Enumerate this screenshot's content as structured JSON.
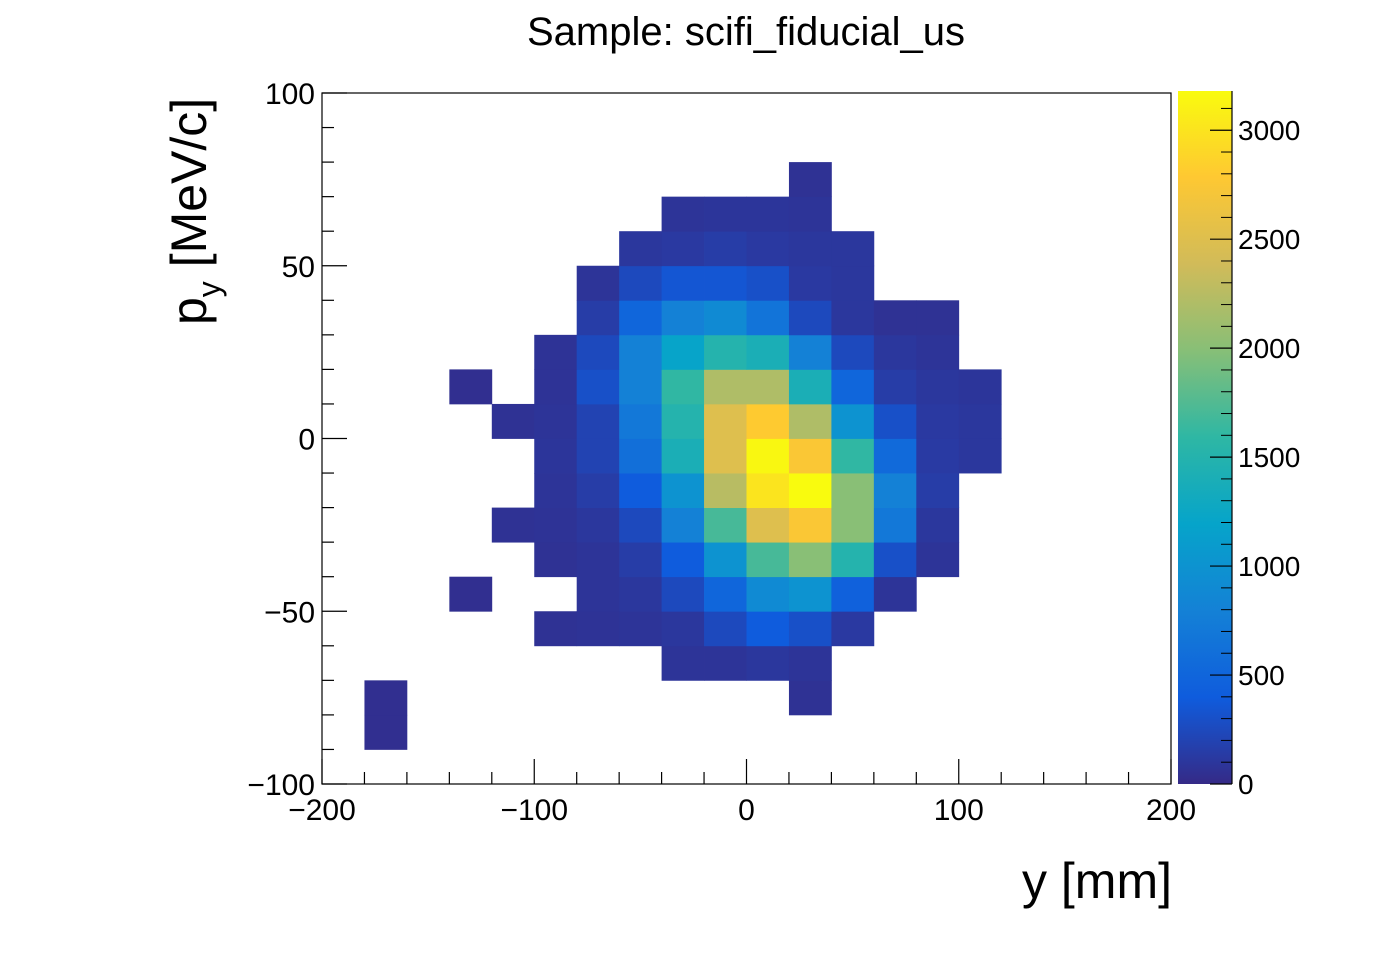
{
  "chart_data": {
    "type": "heatmap",
    "title": "Sample: scifi_fiducial_us",
    "xlabel": "y [mm]",
    "ylabel_main": "p",
    "ylabel_sub": "y",
    "ylabel_rest": " [MeV/c]",
    "xlim": [
      -200,
      200
    ],
    "ylim": [
      -100,
      100
    ],
    "zlim": [
      0,
      3180
    ],
    "x_bin_width": 20,
    "y_bin_width": 10,
    "x_ticks": [
      -200,
      -100,
      0,
      100,
      200
    ],
    "x_tick_labels": [
      "−200",
      "−100",
      "0",
      "100",
      "200"
    ],
    "y_ticks": [
      -100,
      -50,
      0,
      50,
      100
    ],
    "y_tick_labels": [
      "−100",
      "−50",
      "0",
      "50",
      "100"
    ],
    "z_ticks": [
      0,
      500,
      1000,
      1500,
      2000,
      2500,
      3000
    ],
    "z_tick_labels": [
      "0",
      "500",
      "1000",
      "1500",
      "2000",
      "2500",
      "3000"
    ],
    "palette": [
      "#352a87",
      "#0f5cdd",
      "#1481d6",
      "#06a4ca",
      "#2eb7a4",
      "#87bf77",
      "#d1bb59",
      "#fec832",
      "#f9fb0e"
    ],
    "bins": [
      [
        -180,
        -90,
        40
      ],
      [
        -180,
        -80,
        40
      ],
      [
        20,
        -80,
        60
      ],
      [
        -40,
        -70,
        80
      ],
      [
        -20,
        -70,
        80
      ],
      [
        0,
        -70,
        100
      ],
      [
        20,
        -70,
        80
      ],
      [
        -100,
        -60,
        60
      ],
      [
        -80,
        -60,
        70
      ],
      [
        -60,
        -60,
        80
      ],
      [
        -40,
        -60,
        100
      ],
      [
        -20,
        -60,
        250
      ],
      [
        0,
        -60,
        400
      ],
      [
        20,
        -60,
        300
      ],
      [
        40,
        -60,
        120
      ],
      [
        -140,
        -50,
        40
      ],
      [
        -80,
        -50,
        80
      ],
      [
        -60,
        -50,
        100
      ],
      [
        -40,
        -50,
        250
      ],
      [
        -20,
        -50,
        500
      ],
      [
        0,
        -50,
        900
      ],
      [
        20,
        -50,
        1000
      ],
      [
        40,
        -50,
        450
      ],
      [
        60,
        -50,
        80
      ],
      [
        -100,
        -40,
        60
      ],
      [
        -80,
        -40,
        80
      ],
      [
        -60,
        -40,
        150
      ],
      [
        -40,
        -40,
        400
      ],
      [
        -20,
        -40,
        1000
      ],
      [
        0,
        -40,
        1700
      ],
      [
        20,
        -40,
        2000
      ],
      [
        40,
        -40,
        1500
      ],
      [
        60,
        -40,
        300
      ],
      [
        80,
        -40,
        80
      ],
      [
        -120,
        -30,
        60
      ],
      [
        -100,
        -30,
        70
      ],
      [
        -80,
        -30,
        100
      ],
      [
        -60,
        -30,
        250
      ],
      [
        -40,
        -30,
        800
      ],
      [
        -20,
        -30,
        1700
      ],
      [
        0,
        -30,
        2500
      ],
      [
        20,
        -30,
        2750
      ],
      [
        40,
        -30,
        2000
      ],
      [
        60,
        -30,
        700
      ],
      [
        80,
        -30,
        100
      ],
      [
        -100,
        -20,
        80
      ],
      [
        -80,
        -20,
        150
      ],
      [
        -60,
        -20,
        400
      ],
      [
        -40,
        -20,
        1000
      ],
      [
        -20,
        -20,
        2250
      ],
      [
        0,
        -20,
        3000
      ],
      [
        20,
        -20,
        3180
      ],
      [
        40,
        -20,
        2000
      ],
      [
        60,
        -20,
        800
      ],
      [
        80,
        -20,
        150
      ],
      [
        -100,
        -10,
        90
      ],
      [
        -80,
        -10,
        200
      ],
      [
        -60,
        -10,
        600
      ],
      [
        -40,
        -10,
        1400
      ],
      [
        -20,
        -10,
        2500
      ],
      [
        0,
        -10,
        3150
      ],
      [
        20,
        -10,
        2750
      ],
      [
        40,
        -10,
        1600
      ],
      [
        60,
        -10,
        550
      ],
      [
        80,
        -10,
        130
      ],
      [
        100,
        -10,
        100
      ],
      [
        -120,
        0,
        60
      ],
      [
        -100,
        0,
        80
      ],
      [
        -80,
        0,
        200
      ],
      [
        -60,
        0,
        700
      ],
      [
        -40,
        0,
        1500
      ],
      [
        -20,
        0,
        2500
      ],
      [
        0,
        0,
        2800
      ],
      [
        20,
        0,
        2200
      ],
      [
        40,
        0,
        1000
      ],
      [
        60,
        0,
        300
      ],
      [
        80,
        0,
        120
      ],
      [
        100,
        0,
        100
      ],
      [
        -140,
        10,
        40
      ],
      [
        -100,
        10,
        70
      ],
      [
        -80,
        10,
        300
      ],
      [
        -60,
        10,
        800
      ],
      [
        -40,
        10,
        1600
      ],
      [
        -20,
        10,
        2200
      ],
      [
        0,
        10,
        2200
      ],
      [
        20,
        10,
        1400
      ],
      [
        40,
        10,
        500
      ],
      [
        60,
        10,
        150
      ],
      [
        80,
        10,
        100
      ],
      [
        100,
        10,
        90
      ],
      [
        -100,
        20,
        70
      ],
      [
        -80,
        20,
        250
      ],
      [
        -60,
        20,
        800
      ],
      [
        -40,
        20,
        1200
      ],
      [
        -20,
        20,
        1500
      ],
      [
        0,
        20,
        1400
      ],
      [
        20,
        20,
        800
      ],
      [
        40,
        20,
        250
      ],
      [
        60,
        20,
        100
      ],
      [
        80,
        20,
        80
      ],
      [
        -80,
        30,
        150
      ],
      [
        -60,
        30,
        500
      ],
      [
        -40,
        30,
        800
      ],
      [
        -20,
        30,
        900
      ],
      [
        0,
        30,
        650
      ],
      [
        20,
        30,
        250
      ],
      [
        40,
        30,
        100
      ],
      [
        60,
        30,
        60
      ],
      [
        80,
        30,
        60
      ],
      [
        -80,
        40,
        80
      ],
      [
        -60,
        40,
        250
      ],
      [
        -40,
        40,
        350
      ],
      [
        -20,
        40,
        350
      ],
      [
        0,
        40,
        300
      ],
      [
        20,
        40,
        120
      ],
      [
        40,
        40,
        100
      ],
      [
        -60,
        50,
        100
      ],
      [
        -40,
        50,
        120
      ],
      [
        -20,
        50,
        150
      ],
      [
        0,
        50,
        120
      ],
      [
        20,
        50,
        100
      ],
      [
        40,
        50,
        100
      ],
      [
        -40,
        60,
        80
      ],
      [
        -20,
        60,
        90
      ],
      [
        0,
        60,
        90
      ],
      [
        20,
        60,
        80
      ],
      [
        20,
        70,
        60
      ]
    ]
  }
}
